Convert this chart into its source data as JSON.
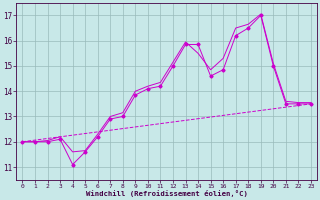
{
  "xlabel": "Windchill (Refroidissement éolien,°C)",
  "background_color": "#c8e8e8",
  "grid_color": "#99bbbb",
  "line_color": "#cc00cc",
  "xmin": -0.5,
  "xmax": 23.5,
  "ymin": 10.5,
  "ymax": 17.5,
  "main_x": [
    0,
    1,
    2,
    3,
    4,
    5,
    6,
    7,
    8,
    9,
    10,
    11,
    12,
    13,
    14,
    15,
    16,
    17,
    18,
    19,
    20,
    21,
    22,
    23
  ],
  "main_y": [
    12.0,
    12.0,
    12.0,
    12.1,
    11.1,
    11.6,
    12.2,
    12.9,
    13.0,
    13.85,
    14.1,
    14.2,
    15.0,
    15.85,
    15.85,
    14.6,
    14.85,
    16.2,
    16.5,
    17.0,
    15.0,
    13.5,
    13.5,
    13.5
  ],
  "upper_x": [
    0,
    1,
    2,
    3,
    4,
    5,
    6,
    7,
    8,
    9,
    10,
    11,
    12,
    13,
    14,
    15,
    16,
    17,
    18,
    19,
    20,
    21,
    22,
    23
  ],
  "upper_y": [
    12.0,
    12.0,
    12.05,
    12.2,
    11.6,
    11.65,
    12.3,
    13.0,
    13.15,
    14.0,
    14.2,
    14.35,
    15.15,
    15.95,
    15.5,
    14.85,
    15.3,
    16.5,
    16.65,
    17.05,
    15.1,
    13.6,
    13.55,
    13.55
  ],
  "baseline_x": [
    0,
    23
  ],
  "baseline_y": [
    12.0,
    13.5
  ],
  "yticks": [
    11,
    12,
    13,
    14,
    15,
    16,
    17
  ],
  "xticks": [
    0,
    1,
    2,
    3,
    4,
    5,
    6,
    7,
    8,
    9,
    10,
    11,
    12,
    13,
    14,
    15,
    16,
    17,
    18,
    19,
    20,
    21,
    22,
    23
  ]
}
